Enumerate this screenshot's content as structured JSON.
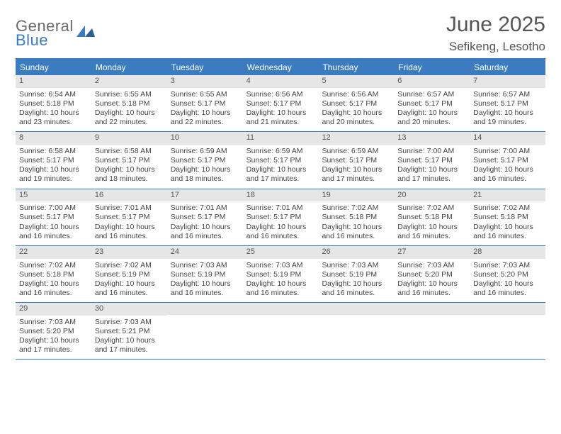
{
  "brand": {
    "name_top": "General",
    "name_bottom": "Blue"
  },
  "title": "June 2025",
  "location": "Sefikeng, Lesotho",
  "colors": {
    "header_bar": "#3b7bbf",
    "daynum_bg": "#e6e6e6",
    "text": "#444444",
    "title_text": "#555555"
  },
  "weekdays": [
    "Sunday",
    "Monday",
    "Tuesday",
    "Wednesday",
    "Thursday",
    "Friday",
    "Saturday"
  ],
  "days": [
    {
      "n": 1,
      "sunrise": "6:54 AM",
      "sunset": "5:18 PM",
      "daylight": "10 hours and 23 minutes."
    },
    {
      "n": 2,
      "sunrise": "6:55 AM",
      "sunset": "5:18 PM",
      "daylight": "10 hours and 22 minutes."
    },
    {
      "n": 3,
      "sunrise": "6:55 AM",
      "sunset": "5:17 PM",
      "daylight": "10 hours and 22 minutes."
    },
    {
      "n": 4,
      "sunrise": "6:56 AM",
      "sunset": "5:17 PM",
      "daylight": "10 hours and 21 minutes."
    },
    {
      "n": 5,
      "sunrise": "6:56 AM",
      "sunset": "5:17 PM",
      "daylight": "10 hours and 20 minutes."
    },
    {
      "n": 6,
      "sunrise": "6:57 AM",
      "sunset": "5:17 PM",
      "daylight": "10 hours and 20 minutes."
    },
    {
      "n": 7,
      "sunrise": "6:57 AM",
      "sunset": "5:17 PM",
      "daylight": "10 hours and 19 minutes."
    },
    {
      "n": 8,
      "sunrise": "6:58 AM",
      "sunset": "5:17 PM",
      "daylight": "10 hours and 19 minutes."
    },
    {
      "n": 9,
      "sunrise": "6:58 AM",
      "sunset": "5:17 PM",
      "daylight": "10 hours and 18 minutes."
    },
    {
      "n": 10,
      "sunrise": "6:59 AM",
      "sunset": "5:17 PM",
      "daylight": "10 hours and 18 minutes."
    },
    {
      "n": 11,
      "sunrise": "6:59 AM",
      "sunset": "5:17 PM",
      "daylight": "10 hours and 17 minutes."
    },
    {
      "n": 12,
      "sunrise": "6:59 AM",
      "sunset": "5:17 PM",
      "daylight": "10 hours and 17 minutes."
    },
    {
      "n": 13,
      "sunrise": "7:00 AM",
      "sunset": "5:17 PM",
      "daylight": "10 hours and 17 minutes."
    },
    {
      "n": 14,
      "sunrise": "7:00 AM",
      "sunset": "5:17 PM",
      "daylight": "10 hours and 16 minutes."
    },
    {
      "n": 15,
      "sunrise": "7:00 AM",
      "sunset": "5:17 PM",
      "daylight": "10 hours and 16 minutes."
    },
    {
      "n": 16,
      "sunrise": "7:01 AM",
      "sunset": "5:17 PM",
      "daylight": "10 hours and 16 minutes."
    },
    {
      "n": 17,
      "sunrise": "7:01 AM",
      "sunset": "5:17 PM",
      "daylight": "10 hours and 16 minutes."
    },
    {
      "n": 18,
      "sunrise": "7:01 AM",
      "sunset": "5:17 PM",
      "daylight": "10 hours and 16 minutes."
    },
    {
      "n": 19,
      "sunrise": "7:02 AM",
      "sunset": "5:18 PM",
      "daylight": "10 hours and 16 minutes."
    },
    {
      "n": 20,
      "sunrise": "7:02 AM",
      "sunset": "5:18 PM",
      "daylight": "10 hours and 16 minutes."
    },
    {
      "n": 21,
      "sunrise": "7:02 AM",
      "sunset": "5:18 PM",
      "daylight": "10 hours and 16 minutes."
    },
    {
      "n": 22,
      "sunrise": "7:02 AM",
      "sunset": "5:18 PM",
      "daylight": "10 hours and 16 minutes."
    },
    {
      "n": 23,
      "sunrise": "7:02 AM",
      "sunset": "5:19 PM",
      "daylight": "10 hours and 16 minutes."
    },
    {
      "n": 24,
      "sunrise": "7:03 AM",
      "sunset": "5:19 PM",
      "daylight": "10 hours and 16 minutes."
    },
    {
      "n": 25,
      "sunrise": "7:03 AM",
      "sunset": "5:19 PM",
      "daylight": "10 hours and 16 minutes."
    },
    {
      "n": 26,
      "sunrise": "7:03 AM",
      "sunset": "5:19 PM",
      "daylight": "10 hours and 16 minutes."
    },
    {
      "n": 27,
      "sunrise": "7:03 AM",
      "sunset": "5:20 PM",
      "daylight": "10 hours and 16 minutes."
    },
    {
      "n": 28,
      "sunrise": "7:03 AM",
      "sunset": "5:20 PM",
      "daylight": "10 hours and 16 minutes."
    },
    {
      "n": 29,
      "sunrise": "7:03 AM",
      "sunset": "5:20 PM",
      "daylight": "10 hours and 17 minutes."
    },
    {
      "n": 30,
      "sunrise": "7:03 AM",
      "sunset": "5:21 PM",
      "daylight": "10 hours and 17 minutes."
    }
  ],
  "labels": {
    "sunrise_prefix": "Sunrise: ",
    "sunset_prefix": "Sunset: ",
    "daylight_prefix": "Daylight: "
  },
  "layout": {
    "first_weekday_index": 0,
    "weeks": 5,
    "columns": 7
  }
}
